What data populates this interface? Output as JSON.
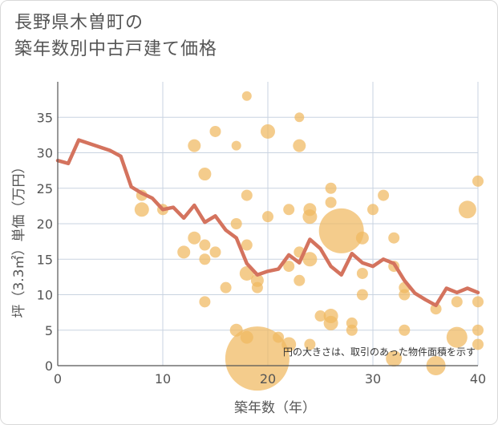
{
  "title": {
    "line1": "長野県木曽町の",
    "line2": "築年数別中古戸建て価格"
  },
  "colors": {
    "line": "#d4735e",
    "bubble": "#f0b860",
    "grid": "#c9d3e0",
    "axis": "#555555"
  },
  "chart_data": {
    "type": "scatter",
    "xlabel": "築年数（年）",
    "ylabel": "坪（3.3㎡）単価（万円）",
    "note": "円の大きさは、取引のあった物件面積を示す",
    "xlim": [
      0,
      40
    ],
    "ylim": [
      0,
      40
    ],
    "xticks": [
      0,
      10,
      20,
      30,
      40
    ],
    "yticks": [
      0,
      5,
      10,
      15,
      20,
      25,
      30,
      35
    ],
    "grid": true,
    "trend_line": {
      "x": [
        0,
        1,
        2,
        3,
        4,
        5,
        6,
        7,
        8,
        9,
        10,
        11,
        12,
        13,
        14,
        15,
        16,
        17,
        18,
        19,
        20,
        21,
        22,
        23,
        24,
        25,
        26,
        27,
        28,
        29,
        30,
        31,
        32,
        33,
        34,
        35,
        36,
        37,
        38,
        39,
        40
      ],
      "y": [
        28.9,
        28.5,
        31.8,
        31.3,
        30.8,
        30.3,
        29.5,
        25.2,
        24.3,
        23.6,
        22.0,
        22.3,
        20.8,
        22.6,
        20.2,
        21.1,
        19.1,
        18.0,
        14.4,
        12.8,
        13.3,
        13.6,
        15.6,
        14.5,
        17.8,
        16.5,
        14.0,
        12.8,
        15.8,
        14.5,
        14.0,
        15.0,
        14.4,
        12.0,
        10.2,
        9.3,
        8.5,
        10.9,
        10.3,
        10.9,
        10.3
      ]
    },
    "bubbles": {
      "x": [
        18,
        15,
        23,
        20,
        13,
        17,
        23,
        14,
        26,
        18,
        8,
        10,
        8,
        24,
        22,
        24,
        30,
        31,
        26,
        17,
        20,
        27,
        29,
        32,
        13,
        14,
        12,
        15,
        14,
        18,
        16,
        24,
        23,
        22,
        32,
        33,
        29,
        18,
        19,
        19,
        23,
        29,
        33,
        14,
        36,
        38,
        40,
        26,
        17,
        18,
        21,
        22,
        24,
        26,
        28,
        28,
        33,
        38,
        40,
        40,
        19,
        32,
        36,
        39,
        25,
        40
      ],
      "y": [
        38,
        33,
        35,
        33,
        31,
        31,
        31,
        27,
        25,
        24,
        24,
        22,
        22,
        22,
        22,
        21,
        22,
        24,
        23,
        20,
        21,
        19,
        18,
        18,
        18,
        17,
        16,
        16,
        15,
        17,
        11,
        15,
        16,
        14,
        14,
        11,
        13,
        13,
        12,
        11,
        12,
        10,
        10,
        9,
        8,
        9,
        9,
        7,
        5,
        4,
        4,
        3,
        3,
        6,
        6,
        5,
        5,
        4,
        5,
        3,
        1,
        1,
        0,
        22,
        7,
        26
      ],
      "sizes": [
        6,
        7,
        6,
        9,
        8,
        6,
        8,
        8,
        7,
        7,
        7,
        7,
        9,
        8,
        7,
        9,
        7,
        7,
        7,
        7,
        7,
        28,
        8,
        7,
        8,
        7,
        8,
        7,
        7,
        7,
        7,
        9,
        7,
        7,
        7,
        7,
        7,
        9,
        8,
        7,
        7,
        7,
        7,
        7,
        7,
        7,
        7,
        9,
        8,
        8,
        7,
        9,
        7,
        9,
        7,
        7,
        7,
        13,
        7,
        7,
        40,
        10,
        12,
        11,
        7,
        7
      ]
    }
  }
}
